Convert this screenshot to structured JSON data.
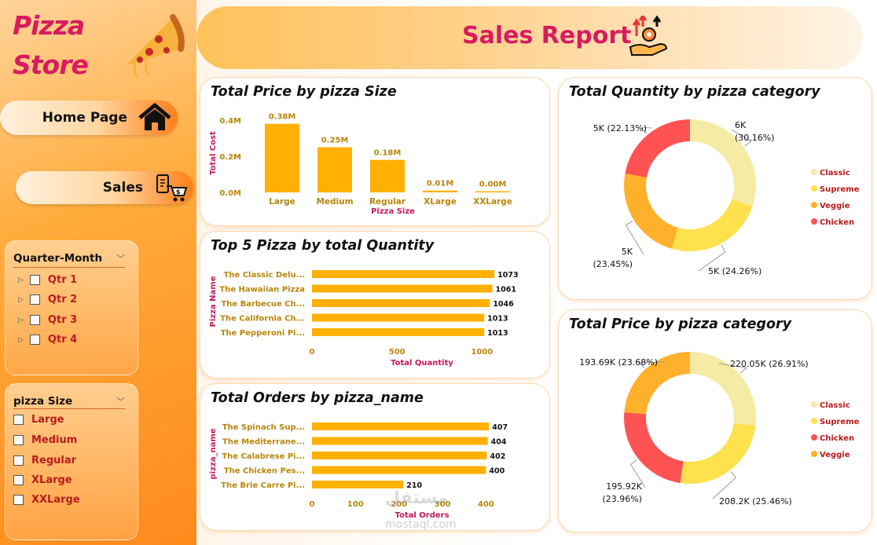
{
  "brand": {
    "line1": "Pizza",
    "line2": "Store"
  },
  "nav": {
    "home_label": "Home Page",
    "sales_label": "Sales"
  },
  "header": {
    "title": "Sales Report"
  },
  "filters": {
    "quarter": {
      "title": "Quarter-Month",
      "items": [
        "Qtr 1",
        "Qtr 2",
        "Qtr 3",
        "Qtr 4"
      ]
    },
    "size": {
      "title": "pizza Size",
      "items": [
        "Large",
        "Medium",
        "Regular",
        "XLarge",
        "XXLarge"
      ]
    }
  },
  "colors": {
    "bar": "#ffb000",
    "classic": "#f6eba5",
    "supreme": "#ffe14d",
    "veggie": "#ffb12b",
    "chicken": "#ff5252",
    "label": "#b8860b",
    "axis_title": "#c2185b"
  },
  "icons": [
    "pizza-slice-icon",
    "home-icon",
    "shopping-cart-icon",
    "sales-growth-icon"
  ],
  "watermark": {
    "text": "مستقل",
    "sub": "mostaql.com"
  },
  "chart_data": [
    {
      "id": "price_by_size",
      "type": "bar",
      "title": "Total Price by pizza Size",
      "categories": [
        "Large",
        "Medium",
        "Regular",
        "XLarge",
        "XXLarge"
      ],
      "values": [
        0.38,
        0.25,
        0.18,
        0.01,
        0.0
      ],
      "value_labels": [
        "0.38M",
        "0.25M",
        "0.18M",
        "0.01M",
        "0.00M"
      ],
      "xlabel": "Pizza Size",
      "ylabel": "Total Cost",
      "yticks": [
        "0.0M",
        "0.2M",
        "0.4M"
      ],
      "ylim": [
        0,
        0.4
      ]
    },
    {
      "id": "top5_quantity",
      "type": "bar",
      "orientation": "horizontal",
      "title": "Top 5 Pizza by total Quantity",
      "categories": [
        "The Classic Delu...",
        "The Hawaiian Pizza",
        "The Barbecue Ch...",
        "The California Ch...",
        "The Pepperoni Pi..."
      ],
      "values": [
        1073,
        1061,
        1046,
        1013,
        1013
      ],
      "xlabel": "Total Quantity",
      "ylabel": "Pizza Name",
      "xticks": [
        0,
        500,
        1000
      ],
      "xlim": [
        0,
        1100
      ]
    },
    {
      "id": "orders_by_name",
      "type": "bar",
      "orientation": "horizontal",
      "title": "Total Orders by pizza_name",
      "categories": [
        "The Spinach Sup...",
        "The Mediterrane...",
        "The Calabrese Pi...",
        "The Chicken Pes...",
        "The Brie Carre Pi..."
      ],
      "values": [
        407,
        404,
        402,
        400,
        210
      ],
      "xlabel": "Total Orders",
      "ylabel": "pizza_name",
      "xticks": [
        0,
        100,
        200,
        300,
        400
      ],
      "xlim": [
        0,
        430
      ]
    },
    {
      "id": "quantity_by_category",
      "type": "pie",
      "donut": true,
      "title": "Total Quantity by pizza category",
      "labels": [
        "Classic",
        "Supreme",
        "Veggie",
        "Chicken"
      ],
      "values": [
        30.16,
        24.26,
        23.45,
        22.13
      ],
      "slice_labels": [
        [
          "6K",
          "(30.16%)"
        ],
        [
          "5K (24.26%)"
        ],
        [
          "5K",
          "(23.45%)"
        ],
        [
          "5K (22.13%)"
        ]
      ],
      "legend": "right"
    },
    {
      "id": "price_by_category",
      "type": "pie",
      "donut": true,
      "title": "Total Price by pizza category",
      "labels": [
        "Classic",
        "Supreme",
        "Chicken",
        "Veggie"
      ],
      "values": [
        26.91,
        25.46,
        23.96,
        23.68
      ],
      "slice_labels": [
        [
          "220.05K (26.91%)"
        ],
        [
          "208.2K (25.46%)"
        ],
        [
          "195.92K",
          "(23.96%)"
        ],
        [
          "193.69K (23.68%)"
        ]
      ],
      "legend": "right"
    }
  ]
}
